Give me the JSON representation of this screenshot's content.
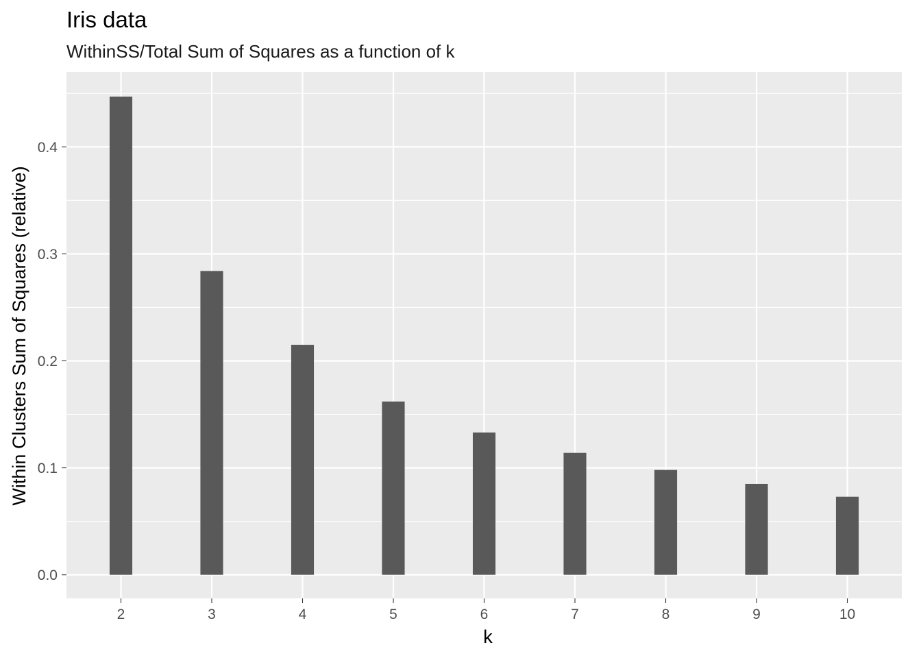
{
  "chart_data": {
    "type": "bar",
    "title": "Iris data",
    "subtitle": "WithinSS/Total Sum of Squares as a function of k",
    "xlabel": "k",
    "ylabel": "Within Clusters Sum of Squares (relative)",
    "categories": [
      "2",
      "3",
      "4",
      "5",
      "6",
      "7",
      "8",
      "9",
      "10"
    ],
    "values": [
      0.447,
      0.284,
      0.215,
      0.162,
      0.133,
      0.114,
      0.098,
      0.085,
      0.073
    ],
    "ylim": [
      -0.022,
      0.47
    ],
    "yticks": [
      0.0,
      0.1,
      0.2,
      0.3,
      0.4
    ],
    "ytick_labels": [
      "0.0",
      "0.1",
      "0.2",
      "0.3",
      "0.4"
    ],
    "grid": true,
    "legend": "none",
    "colors": {
      "bar": "#595959",
      "panel": "#ebebeb",
      "grid": "#ffffff",
      "tick": "#333333"
    }
  }
}
